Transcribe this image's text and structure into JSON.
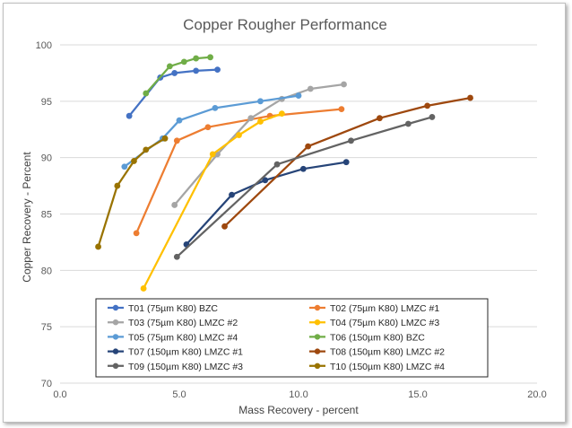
{
  "chart_data": {
    "type": "line",
    "title": "Copper Rougher Performance",
    "xlabel": "Mass Recovery - percent",
    "ylabel": "Copper Recovery - Percent",
    "xlim": [
      0,
      20
    ],
    "ylim": [
      70,
      100
    ],
    "xticks": [
      "0.0",
      "5.0",
      "10.0",
      "15.0",
      "20.0"
    ],
    "yticks": [
      "70",
      "75",
      "80",
      "85",
      "90",
      "95",
      "100"
    ],
    "grid": "horizontal",
    "legend_position": "inside-bottom",
    "series": [
      {
        "name": "T01 (75µm K80) BZC",
        "color": "#4472c4",
        "x": [
          2.9,
          4.2,
          4.8,
          5.7,
          6.6
        ],
        "y": [
          93.7,
          97.1,
          97.5,
          97.7,
          97.8
        ]
      },
      {
        "name": "T02 (75µm K80) LMZC #1",
        "color": "#ed7d31",
        "x": [
          3.2,
          4.9,
          6.2,
          8.8,
          11.8
        ],
        "y": [
          83.3,
          91.5,
          92.7,
          93.7,
          94.3
        ]
      },
      {
        "name": "T03 (75µm K80) LMZC #2",
        "color": "#a5a5a5",
        "x": [
          4.8,
          6.6,
          8.0,
          9.3,
          10.5,
          11.9
        ],
        "y": [
          85.8,
          90.3,
          93.5,
          95.2,
          96.1,
          96.5
        ]
      },
      {
        "name": "T04 (75µm K80) LMZC #3",
        "color": "#ffc000",
        "x": [
          3.5,
          6.4,
          7.5,
          8.4,
          9.3
        ],
        "y": [
          78.4,
          90.3,
          92.0,
          93.2,
          93.9
        ]
      },
      {
        "name": "T05 (75µm K80) LMZC #4",
        "color": "#5b9bd5",
        "x": [
          2.7,
          4.3,
          5.0,
          6.5,
          8.4,
          10.0
        ],
        "y": [
          89.2,
          91.7,
          93.3,
          94.4,
          95.0,
          95.5
        ]
      },
      {
        "name": "T06 (150µm K80) BZC",
        "color": "#70ad47",
        "x": [
          3.6,
          4.6,
          5.2,
          5.7,
          6.3
        ],
        "y": [
          95.7,
          98.1,
          98.5,
          98.8,
          98.9
        ]
      },
      {
        "name": "T07 (150µm K80) LMZC #1",
        "color": "#264478",
        "x": [
          5.3,
          7.2,
          8.6,
          10.2,
          12.0
        ],
        "y": [
          82.3,
          86.7,
          88.0,
          89.0,
          89.6
        ]
      },
      {
        "name": "T08 (150µm K80) LMZC #2",
        "color": "#9e480e",
        "x": [
          6.9,
          10.4,
          13.4,
          15.4,
          17.2
        ],
        "y": [
          83.9,
          91.0,
          93.5,
          94.6,
          95.3
        ]
      },
      {
        "name": "T09 (150µm K80) LMZC #3",
        "color": "#636363",
        "x": [
          4.9,
          9.1,
          12.2,
          14.6,
          15.6
        ],
        "y": [
          81.2,
          89.4,
          91.5,
          93.0,
          93.6
        ]
      },
      {
        "name": "T10 (150µm K80) LMZC #4",
        "color": "#997300",
        "x": [
          1.6,
          2.4,
          3.1,
          3.6,
          4.4
        ],
        "y": [
          82.1,
          87.5,
          89.7,
          90.7,
          91.7
        ]
      }
    ]
  }
}
